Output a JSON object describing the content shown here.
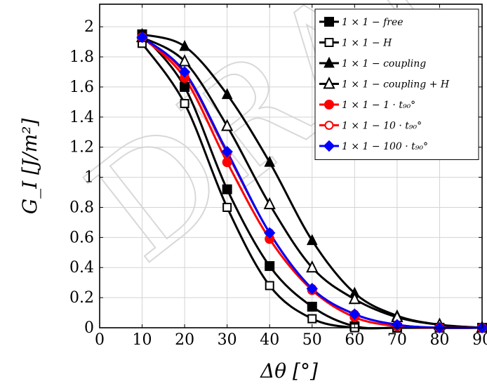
{
  "chart_data": {
    "type": "line",
    "watermark": "DRAFT",
    "xlabel": "Δθ [°]",
    "ylabel": "G_I [J/m²]",
    "xlim": [
      0,
      90
    ],
    "ylim": [
      0,
      2.15
    ],
    "xticks": [
      0,
      10,
      20,
      30,
      40,
      50,
      60,
      70,
      80,
      90
    ],
    "yticks": [
      0,
      0.2,
      0.4,
      0.6,
      0.8,
      1,
      1.2,
      1.4,
      1.6,
      1.8,
      2
    ],
    "xtick_labels": [
      "0",
      "10",
      "20",
      "30",
      "40",
      "50",
      "60",
      "70",
      "80",
      "90"
    ],
    "ytick_labels": [
      "0",
      "0.2",
      "0.4",
      "0.6",
      "0.8",
      "1",
      "1.2",
      "1.4",
      "1.6",
      "1.8",
      "2"
    ],
    "grid": true,
    "legend_position": "top-right",
    "x": [
      10,
      20,
      30,
      40,
      50,
      60,
      70,
      80,
      90
    ],
    "series": [
      {
        "name": "1 × 1 − free",
        "marker": "square-filled",
        "color": "#000000",
        "values": [
          1.95,
          1.6,
          0.92,
          0.41,
          0.14,
          0.01,
          0.0,
          0.0,
          0.0
        ]
      },
      {
        "name": "1 × 1 − H",
        "marker": "square-open",
        "color": "#000000",
        "values": [
          1.89,
          1.49,
          0.8,
          0.28,
          0.06,
          0.0,
          0.0,
          0.0,
          0.0
        ]
      },
      {
        "name": "1 × 1 − coupling",
        "marker": "triangle-filled",
        "color": "#000000",
        "values": [
          1.95,
          1.87,
          1.55,
          1.1,
          0.58,
          0.23,
          0.08,
          0.02,
          0.0
        ]
      },
      {
        "name": "1 × 1 − coupling + H",
        "marker": "triangle-open",
        "color": "#000000",
        "values": [
          1.93,
          1.77,
          1.34,
          0.82,
          0.4,
          0.19,
          0.07,
          0.02,
          0.0
        ]
      },
      {
        "name": "1 × 1 − 1 · t₉₀°",
        "marker": "circle-filled",
        "color": "#ff0000",
        "values": [
          1.93,
          1.66,
          1.1,
          0.59,
          0.25,
          0.07,
          0.01,
          0.0,
          0.0
        ]
      },
      {
        "name": "1 × 1 − 10 · t₉₀°",
        "marker": "circle-open",
        "color": "#ff0000",
        "values": [
          1.93,
          1.69,
          1.16,
          0.63,
          0.26,
          0.09,
          0.02,
          0.0,
          0.0
        ]
      },
      {
        "name": "1 × 1 − 100 · t₉₀°",
        "marker": "diamond-filled",
        "color": "#0000ff",
        "values": [
          1.93,
          1.7,
          1.17,
          0.63,
          0.26,
          0.09,
          0.02,
          0.0,
          0.0
        ]
      }
    ]
  }
}
